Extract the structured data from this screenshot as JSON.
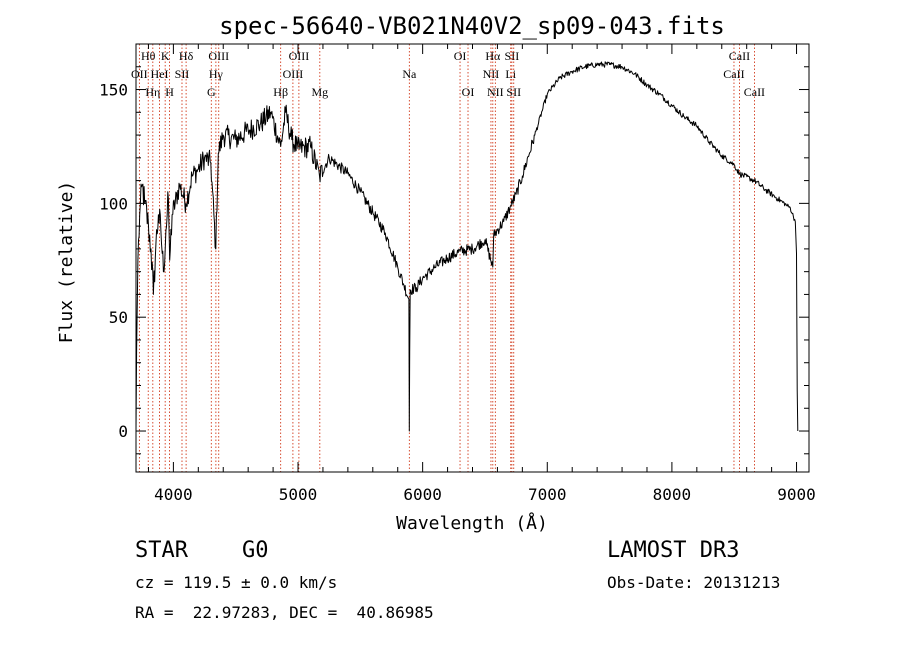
{
  "chart_data": {
    "type": "line",
    "title": "spec-56640-VB021N40V2_sp09-043.fits",
    "xlabel": "Wavelength (Å)",
    "ylabel": "Flux (relative)",
    "xlim": [
      3700,
      9100
    ],
    "ylim": [
      -18,
      170
    ],
    "x_ticks": [
      4000,
      5000,
      6000,
      7000,
      8000,
      9000
    ],
    "x_tick_labels": [
      "4000",
      "5000",
      "6000",
      "7000",
      "8000",
      "9000"
    ],
    "y_ticks": [
      0,
      50,
      100,
      150
    ],
    "y_tick_labels": [
      "0",
      "50",
      "100",
      "150"
    ],
    "grid": false,
    "series": [
      {
        "name": "flux",
        "color": "#000000",
        "points": [
          [
            3700,
            0
          ],
          [
            3705,
            35
          ],
          [
            3715,
            75
          ],
          [
            3730,
            95
          ],
          [
            3750,
            108
          ],
          [
            3770,
            100
          ],
          [
            3800,
            90
          ],
          [
            3820,
            80
          ],
          [
            3840,
            60
          ],
          [
            3860,
            82
          ],
          [
            3880,
            95
          ],
          [
            3900,
            88
          ],
          [
            3920,
            70
          ],
          [
            3940,
            88
          ],
          [
            3960,
            102
          ],
          [
            3970,
            75
          ],
          [
            3990,
            95
          ],
          [
            4050,
            108
          ],
          [
            4101,
            100
          ],
          [
            4150,
            112
          ],
          [
            4200,
            115
          ],
          [
            4250,
            120
          ],
          [
            4300,
            118
          ],
          [
            4340,
            80
          ],
          [
            4360,
            122
          ],
          [
            4400,
            130
          ],
          [
            4500,
            128
          ],
          [
            4600,
            132
          ],
          [
            4700,
            135
          ],
          [
            4780,
            140
          ],
          [
            4861,
            125
          ],
          [
            4900,
            140
          ],
          [
            4950,
            128
          ],
          [
            5000,
            124
          ],
          [
            5100,
            125
          ],
          [
            5172,
            112
          ],
          [
            5250,
            120
          ],
          [
            5400,
            113
          ],
          [
            5500,
            105
          ],
          [
            5600,
            96
          ],
          [
            5700,
            87
          ],
          [
            5800,
            72
          ],
          [
            5850,
            64
          ],
          [
            5890,
            58
          ],
          [
            5893,
            0
          ],
          [
            5896,
            35
          ],
          [
            5900,
            62
          ],
          [
            5950,
            63
          ],
          [
            6000,
            67
          ],
          [
            6100,
            72
          ],
          [
            6200,
            76
          ],
          [
            6300,
            79
          ],
          [
            6400,
            80
          ],
          [
            6500,
            84
          ],
          [
            6563,
            72
          ],
          [
            6570,
            86
          ],
          [
            6650,
            92
          ],
          [
            6700,
            98
          ],
          [
            6750,
            104
          ],
          [
            6800,
            112
          ],
          [
            6900,
            130
          ],
          [
            7000,
            148
          ],
          [
            7100,
            155
          ],
          [
            7200,
            158
          ],
          [
            7300,
            160
          ],
          [
            7400,
            161
          ],
          [
            7500,
            161
          ],
          [
            7600,
            160
          ],
          [
            7700,
            157
          ],
          [
            7800,
            152
          ],
          [
            7900,
            148
          ],
          [
            8000,
            143
          ],
          [
            8100,
            138
          ],
          [
            8200,
            134
          ],
          [
            8300,
            127
          ],
          [
            8400,
            121
          ],
          [
            8498,
            117
          ],
          [
            8542,
            113
          ],
          [
            8662,
            110
          ],
          [
            8750,
            106
          ],
          [
            8850,
            102
          ],
          [
            8950,
            98
          ],
          [
            8990,
            92
          ],
          [
            9000,
            78
          ],
          [
            9005,
            18
          ],
          [
            9010,
            0
          ]
        ]
      }
    ],
    "line_markers": [
      {
        "wavelength": 3727,
        "label": "OII",
        "row": 2
      },
      {
        "wavelength": 3798,
        "label": "Hθ",
        "row": 1
      },
      {
        "wavelength": 3835,
        "label": "Hη",
        "row": 3
      },
      {
        "wavelength": 3889,
        "label": "HeI",
        "row": 2
      },
      {
        "wavelength": 3934,
        "label": "K",
        "row": 1
      },
      {
        "wavelength": 3969,
        "label": "H",
        "row": 3
      },
      {
        "wavelength": 4069,
        "label": "SII",
        "row": 2
      },
      {
        "wavelength": 4102,
        "label": "Hδ",
        "row": 1
      },
      {
        "wavelength": 4304,
        "label": "G",
        "row": 3
      },
      {
        "wavelength": 4341,
        "label": "Hγ",
        "row": 2
      },
      {
        "wavelength": 4364,
        "label": "OIII",
        "row": 1
      },
      {
        "wavelength": 4861,
        "label": "Hβ",
        "row": 3
      },
      {
        "wavelength": 4959,
        "label": "OIII",
        "row": 2
      },
      {
        "wavelength": 5007,
        "label": "OIII",
        "row": 1
      },
      {
        "wavelength": 5175,
        "label": "Mg",
        "row": 3
      },
      {
        "wavelength": 5893,
        "label": "Na",
        "row": 2
      },
      {
        "wavelength": 6300,
        "label": "OI",
        "row": 1
      },
      {
        "wavelength": 6364,
        "label": "OI",
        "row": 3
      },
      {
        "wavelength": 6548,
        "label": "NII",
        "row": 2
      },
      {
        "wavelength": 6563,
        "label": "Hα",
        "row": 1
      },
      {
        "wavelength": 6583,
        "label": "NII",
        "row": 3
      },
      {
        "wavelength": 6707,
        "label": "Li",
        "row": 2
      },
      {
        "wavelength": 6716,
        "label": "SII",
        "row": 1
      },
      {
        "wavelength": 6731,
        "label": "SII",
        "row": 3
      },
      {
        "wavelength": 8498,
        "label": "CaII",
        "row": 2
      },
      {
        "wavelength": 8542,
        "label": "CaII",
        "row": 1
      },
      {
        "wavelength": 8662,
        "label": "CaII",
        "row": 3
      }
    ],
    "colors": {
      "spectrum": "#000000",
      "marker_line": "#cc2200",
      "axes": "#000000"
    }
  },
  "info": {
    "object_class": "STAR",
    "subclass": "G0",
    "survey": "LAMOST DR3",
    "redshift_line": "cz = 119.5 ± 0.0 km/s",
    "obs_date_line": "Obs-Date: 20131213",
    "coords_line": "RA =  22.97283, DEC =  40.86985"
  }
}
